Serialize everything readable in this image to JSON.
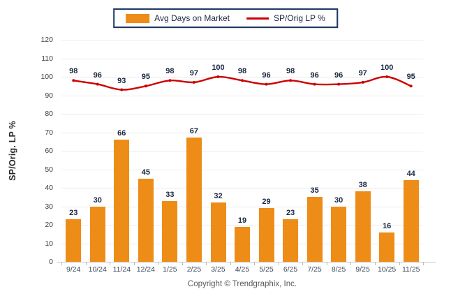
{
  "footer": "Copyright © Trendgraphix, Inc.",
  "colors": {
    "bar": "#EE8C18",
    "line": "#CC0000",
    "data_label": "#1A2742",
    "axis_text": "#3E4A5B",
    "ytick_text": "#404040",
    "grid": "#EBEBEB",
    "baseline": "#C9C9C9",
    "tick": "#BBBBBB",
    "legend_border": "#1F3864"
  },
  "chart_data": {
    "type": "bar",
    "categories": [
      "9/24",
      "10/24",
      "11/24",
      "12/24",
      "1/25",
      "2/25",
      "3/25",
      "4/25",
      "5/25",
      "6/25",
      "7/25",
      "8/25",
      "9/25",
      "10/25",
      "11/25"
    ],
    "series": [
      {
        "name": "Avg Days on Market",
        "type": "bar",
        "values": [
          23,
          30,
          66,
          45,
          33,
          67,
          32,
          19,
          29,
          23,
          35,
          30,
          38,
          16,
          44
        ]
      },
      {
        "name": "SP/Orig LP %",
        "type": "line",
        "values": [
          98,
          96,
          93,
          95,
          98,
          97,
          100,
          98,
          96,
          98,
          96,
          96,
          97,
          100,
          95
        ]
      }
    ],
    "title": "",
    "xlabel": "",
    "ylabel": "SP/Orig. LP %",
    "ylim": [
      0,
      120
    ],
    "ytick_step": 10,
    "grid": true,
    "legend_position": "top"
  }
}
